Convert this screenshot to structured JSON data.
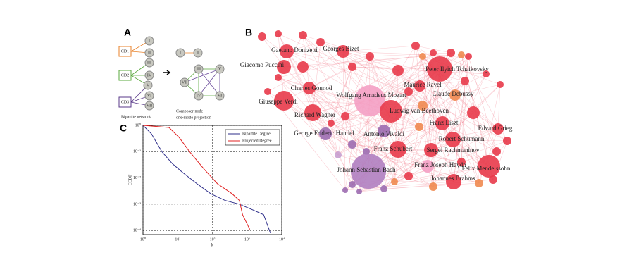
{
  "panel_a": {
    "label": "A",
    "cds": [
      "CD1",
      "CD2",
      "CD3"
    ],
    "composers": [
      "I",
      "II",
      "III",
      "IV",
      "V",
      "VI",
      "VII"
    ],
    "bipartite_caption": "Bipartite network",
    "projection_caption": [
      "Composer-node",
      "one-mode projection"
    ]
  },
  "panel_b": {
    "label": "B",
    "nodes": [
      "Gaetano Donizetti",
      "Georges Bizet",
      "Giacomo Puccini",
      "Peter Ilyich Tchaikovsky",
      "Charles Gounod",
      "Wolfgang Amadeus Mozart",
      "Maurice Ravel",
      "Claude Debussy",
      "Giuseppe Verdi",
      "Ludwig van Beethoven",
      "Richard Wagner",
      "Franz Liszt",
      "Edvard Grieg",
      "George Frideric Handel",
      "Antonio Vivaldi",
      "Robert Schumann",
      "Franz Schubert",
      "Sergei Rachmaninov",
      "Franz Joseph Haydn",
      "Johann Sebastian Bach",
      "Felix Mendelssohn",
      "Johannes Brahms"
    ]
  },
  "chart_data": {
    "type": "line",
    "panel_label": "C",
    "xlabel": "k",
    "ylabel": "CCDF",
    "log_x": true,
    "log_y": true,
    "grid": true,
    "xlim": [
      1,
      10000
    ],
    "ylim": [
      7e-05,
      1
    ],
    "xticks": [
      {
        "value": 1,
        "label": "10⁰"
      },
      {
        "value": 10,
        "label": "10¹"
      },
      {
        "value": 100,
        "label": "10²"
      },
      {
        "value": 1000,
        "label": "10³"
      },
      {
        "value": 10000,
        "label": "10⁴"
      }
    ],
    "yticks": [
      {
        "value": 1,
        "label": "10⁰"
      },
      {
        "value": 0.1,
        "label": "10⁻¹"
      },
      {
        "value": 0.01,
        "label": "10⁻²"
      },
      {
        "value": 0.001,
        "label": "10⁻³"
      },
      {
        "value": 0.0001,
        "label": "10⁻⁴"
      }
    ],
    "legend": "upper right",
    "series": [
      {
        "name": "Bipartite Degree",
        "color": "#2e2e8a",
        "x": [
          1,
          1.75,
          3.5,
          7,
          14,
          36,
          90,
          230,
          600,
          1500,
          3000,
          4700
        ],
        "values": [
          1,
          0.48,
          0.1,
          0.035,
          0.016,
          0.006,
          0.0025,
          0.0014,
          0.001,
          0.0006,
          0.0004,
          8e-05
        ]
      },
      {
        "name": "Projected Degree",
        "color": "#e02020",
        "x": [
          1,
          5.6,
          11,
          22,
          57,
          140,
          370,
          600,
          740,
          1200
        ],
        "values": [
          1,
          0.83,
          0.35,
          0.1,
          0.022,
          0.006,
          0.0025,
          0.0014,
          0.0004,
          0.00011
        ]
      }
    ]
  }
}
